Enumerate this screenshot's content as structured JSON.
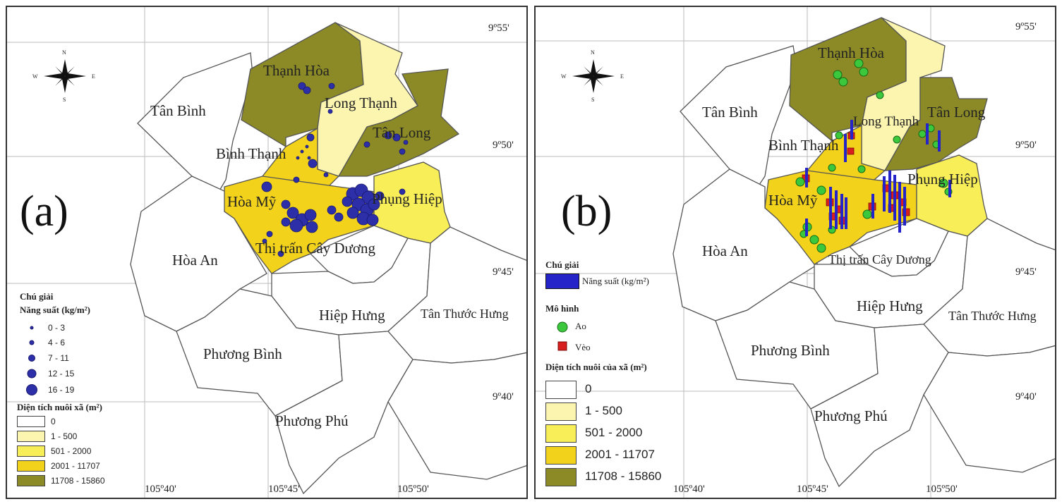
{
  "colors": {
    "area_0": "#ffffff",
    "area_1_500": "#fbf5b0",
    "area_501_2000": "#f8ee58",
    "area_2001_11707": "#f2d21a",
    "area_11708_15860": "#8b8a26",
    "yield_dot": "#2d2fa8",
    "pond": "#3cc83c",
    "pen": "#d81e1e",
    "yield_bar": "#2424c8"
  },
  "panel_a": {
    "panel_label": "(a)",
    "towns": {
      "thanh_hoa": "Thạnh Hòa",
      "long_thanh": "Long Thạnh",
      "tan_binh": "Tân Bình",
      "tan_long": "Tân Long",
      "binh_thanh": "Bình Thạnh",
      "hoa_my": "Hòa Mỹ",
      "phung_hiep": "Phụng Hiệp",
      "thi_tran": "Thị trấn Cây Dương",
      "hoa_an": "Hòa An",
      "hiep_hung": "Hiệp Hưng",
      "tan_thuoc_hung": "Tân Thước Hưng",
      "phuong_binh": "Phương Bình",
      "phuong_phu": "Phương Phú"
    },
    "coords": {
      "lat_955": "9º55'",
      "lat_950": "9º50'",
      "lat_945": "9º45'",
      "lat_940": "9º40'",
      "lon_540": "105º40'",
      "lon_545": "105º45'",
      "lon_550": "105º50'"
    },
    "compass": {
      "n": "N",
      "s": "S",
      "e": "E",
      "w": "W"
    },
    "legend": {
      "title": "Chú giải",
      "yield_title": "Năng suất (kg/m²)",
      "yield_classes": [
        "0 - 3",
        "4 - 6",
        "7 - 11",
        "12 - 15",
        "16 - 19"
      ],
      "area_title": "Diện tích nuôi xã (m²)",
      "area_classes": [
        "0",
        "1 - 500",
        "501 - 2000",
        "2001 - 11707",
        "11708 - 15860"
      ]
    }
  },
  "panel_b": {
    "panel_label": "(b)",
    "towns": {
      "thanh_hoa": "Thạnh Hòa",
      "long_thanh": "Long Thạnh",
      "tan_binh": "Tân Bình",
      "tan_long": "Tân Long",
      "binh_thanh": "Bình Thạnh",
      "hoa_my": "Hòa Mỹ",
      "phung_hiep": "Phụng Hiệp",
      "thi_tran": "Thị trấn Cây Dương",
      "hoa_an": "Hòa An",
      "hiep_hung": "Hiệp Hưng",
      "tan_thuoc_hung": "Tân Thước Hưng",
      "phuong_binh": "Phương Bình",
      "phuong_phu": "Phương Phú"
    },
    "coords": {
      "lat_955": "9º55'",
      "lat_950": "9º50'",
      "lat_945": "9º45'",
      "lat_940": "9º40'",
      "lon_540": "105º40'",
      "lon_545": "105º45'",
      "lon_550": "105º50'"
    },
    "compass": {
      "n": "N",
      "s": "S",
      "e": "E",
      "w": "W"
    },
    "legend": {
      "title": "Chú giải",
      "yield_label": "Năng suất (kg/m²)",
      "model_title": "Mô hình",
      "model_pond": "Ao",
      "model_pen": "Vèo",
      "area_title": "Diện tích nuôi của xã (m²)",
      "area_classes": [
        "0",
        "1 - 500",
        "501 - 2000",
        "2001 - 11707",
        "11708 - 15860"
      ]
    }
  }
}
